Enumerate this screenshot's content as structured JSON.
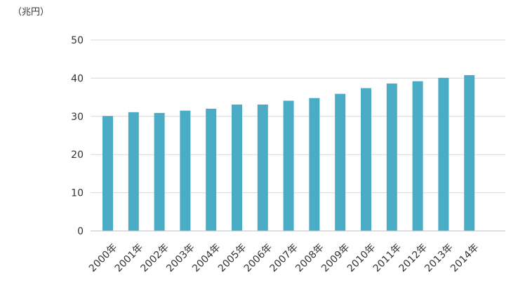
{
  "chart_data": {
    "type": "bar",
    "unit_label": "（兆円）",
    "categories": [
      "2000年",
      "2001年",
      "2002年",
      "2003年",
      "2004年",
      "2005年",
      "2006年",
      "2007年",
      "2008年",
      "2009年",
      "2010年",
      "2011年",
      "2012年",
      "2013年",
      "2014年"
    ],
    "values": [
      30.1,
      31.1,
      30.9,
      31.5,
      32.0,
      33.1,
      33.1,
      34.1,
      34.8,
      35.9,
      37.4,
      38.6,
      39.2,
      40.1,
      40.8
    ],
    "ylim": [
      0,
      50
    ],
    "yticks": [
      0,
      10,
      20,
      30,
      40,
      50
    ],
    "grid": true,
    "bar_color": "#4bacc6",
    "grid_color": "#d9d9d9",
    "axis_color": "#bfbfbf"
  }
}
